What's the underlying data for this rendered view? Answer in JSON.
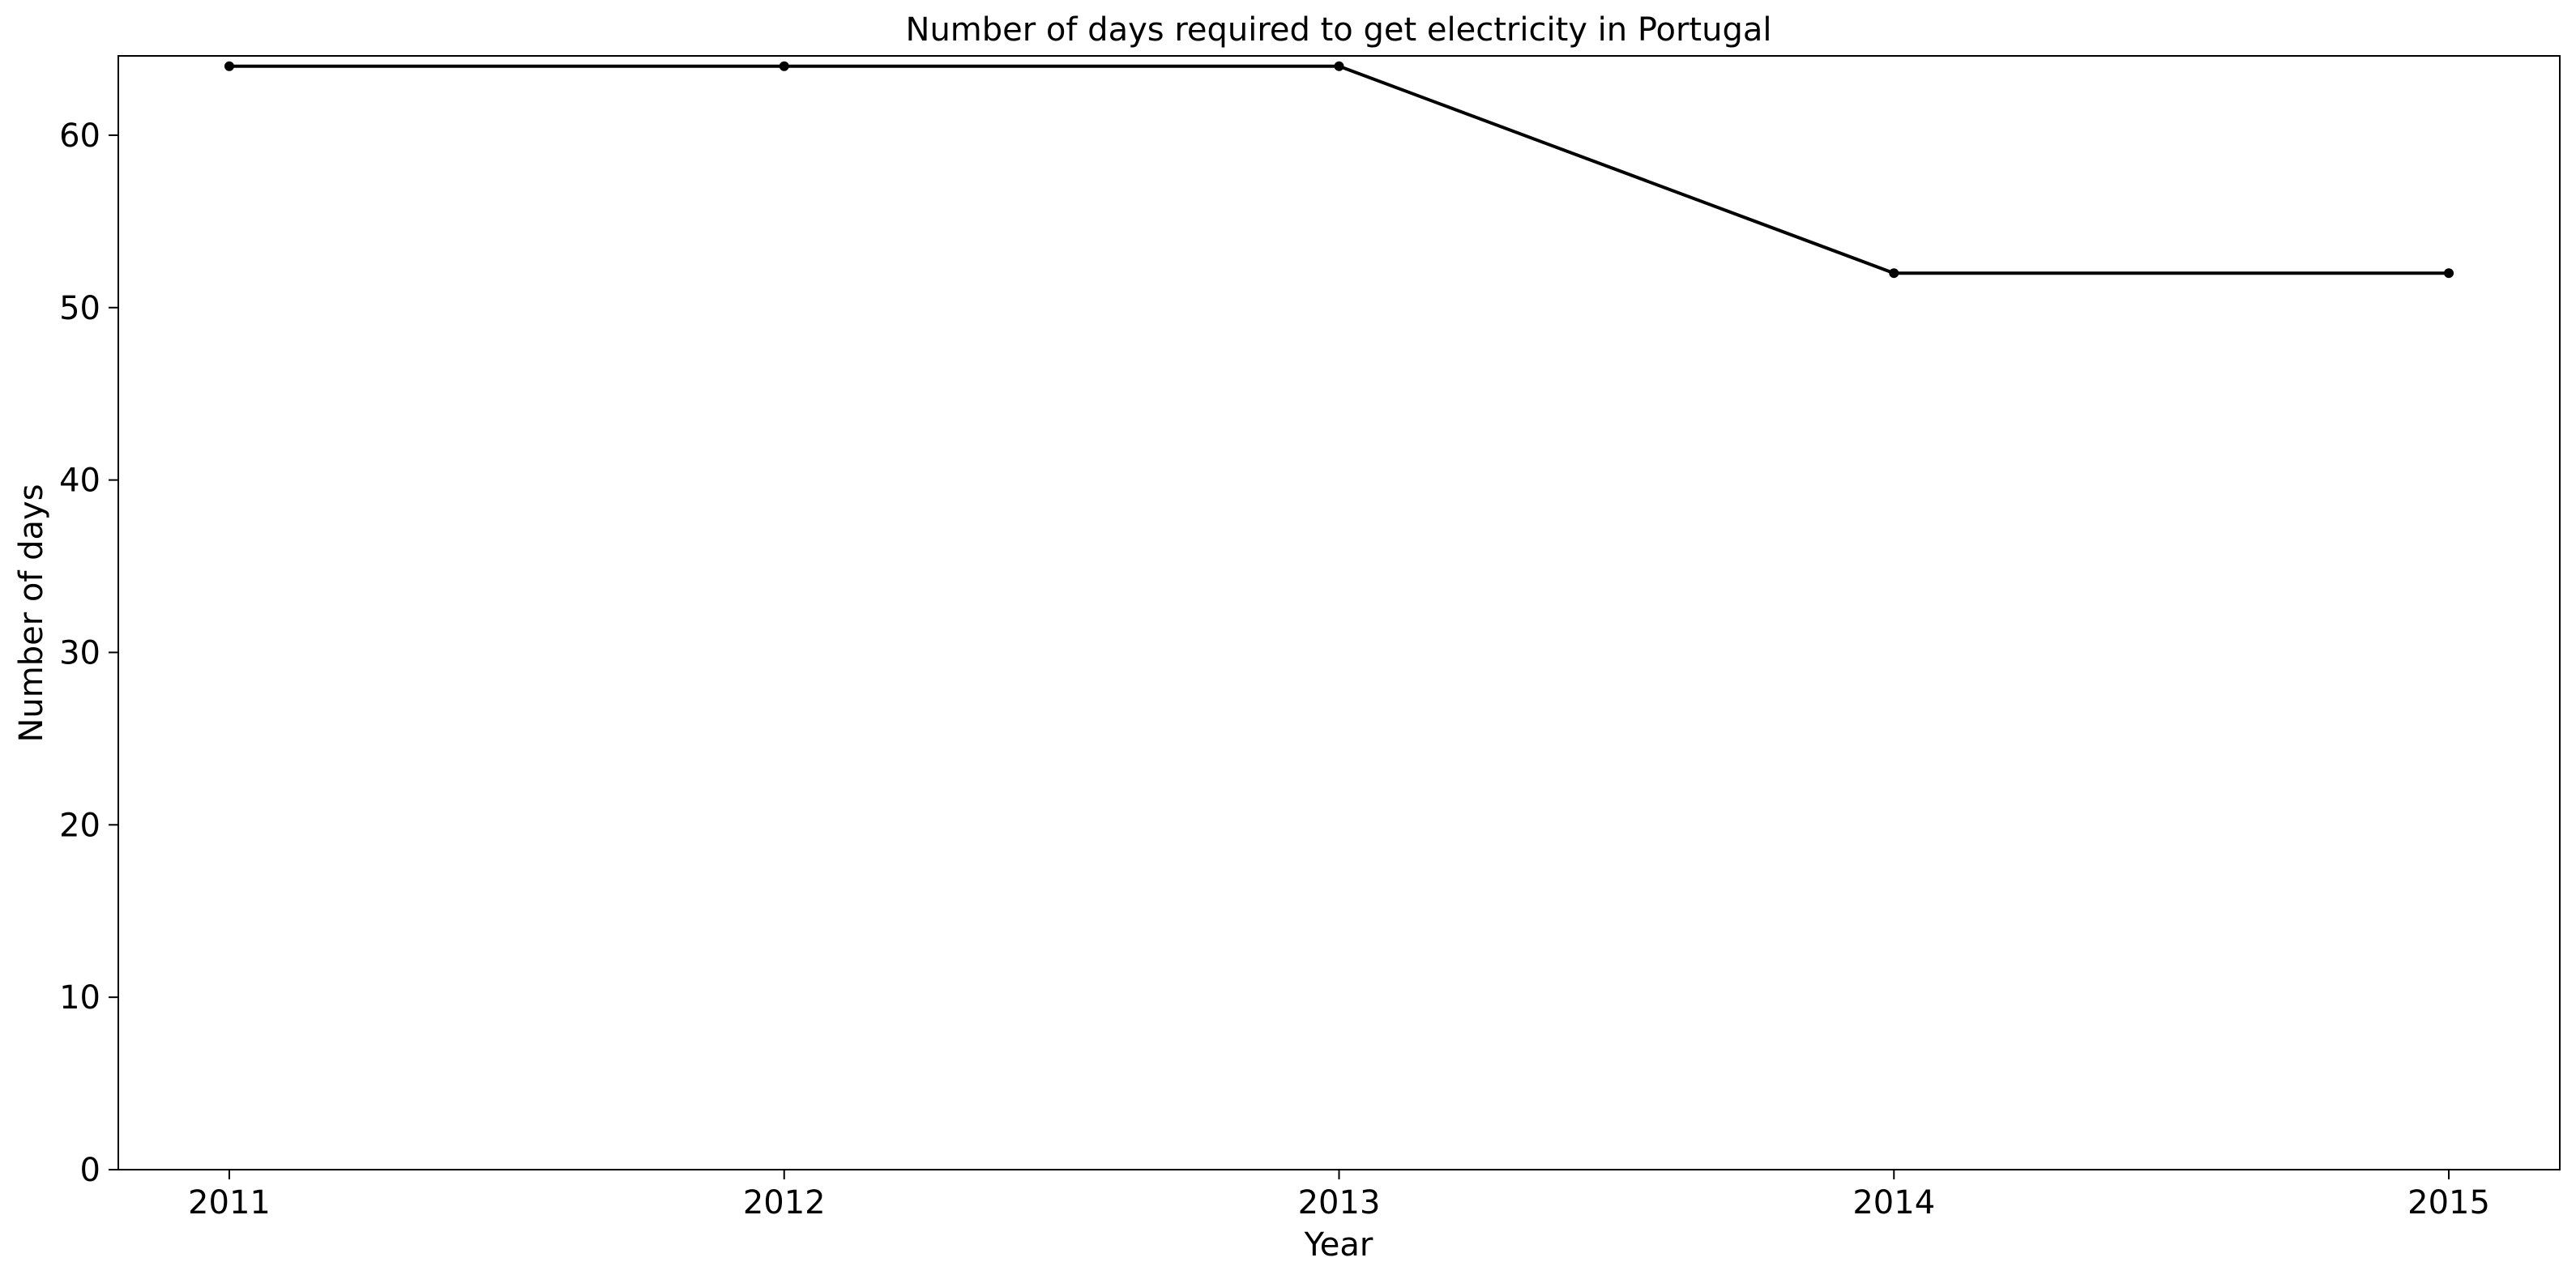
{
  "chart_data": {
    "type": "line",
    "title": "Number of days required to get electricity in Portugal",
    "xlabel": "Year",
    "ylabel": "Number of days",
    "x": [
      2011,
      2012,
      2013,
      2014,
      2015
    ],
    "x_tick_labels": [
      "2011",
      "2012",
      "2013",
      "2014",
      "2015"
    ],
    "series": [
      {
        "values": [
          64,
          64,
          64,
          52,
          52
        ]
      }
    ],
    "xlim": [
      2010.8,
      2015.2
    ],
    "ylim": [
      0,
      64.6
    ],
    "y_ticks": [
      0,
      10,
      20,
      30,
      40,
      50,
      60
    ],
    "y_tick_labels": [
      "0",
      "10",
      "20",
      "30",
      "40",
      "50",
      "60"
    ],
    "grid": false,
    "legend": "none",
    "colors": {
      "line": "#000000",
      "marker": "#000000",
      "axes": "#000000",
      "background": "#ffffff"
    }
  }
}
